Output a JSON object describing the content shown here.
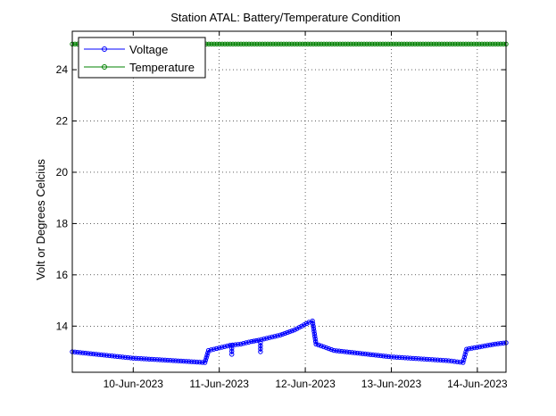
{
  "chart_data": {
    "type": "line",
    "title": "Station ATAL: Battery/Temperature Condition",
    "xlabel": "",
    "ylabel": "Volt or Degrees Celcius",
    "xlim": [
      "2023-06-09T07:00",
      "2023-06-14T08:00"
    ],
    "ylim": [
      12.2,
      25.5
    ],
    "x_ticks": [
      {
        "date": "2023-06-10",
        "label": "10-Jun-2023"
      },
      {
        "date": "2023-06-11",
        "label": "11-Jun-2023"
      },
      {
        "date": "2023-06-12",
        "label": "12-Jun-2023"
      },
      {
        "date": "2023-06-13",
        "label": "13-Jun-2023"
      },
      {
        "date": "2023-06-14",
        "label": "14-Jun-2023"
      }
    ],
    "y_ticks": [
      14,
      16,
      18,
      20,
      22,
      24
    ],
    "grid": true,
    "legend_position": "top-left",
    "series": [
      {
        "name": "Voltage",
        "color": "#0000ff",
        "marker": "circle",
        "points": [
          [
            "2023-06-09T07:00",
            13.0
          ],
          [
            "2023-06-10T00:00",
            12.75
          ],
          [
            "2023-06-10T20:00",
            12.58
          ],
          [
            "2023-06-10T21:00",
            13.05
          ],
          [
            "2023-06-11T03:00",
            13.25
          ],
          [
            "2023-06-11T06:00",
            13.3
          ],
          [
            "2023-06-11T09:00",
            13.4
          ],
          [
            "2023-06-11T11:00",
            13.45
          ],
          [
            "2023-06-11T17:00",
            13.65
          ],
          [
            "2023-06-11T21:00",
            13.85
          ],
          [
            "2023-06-12T01:00",
            14.15
          ],
          [
            "2023-06-12T02:00",
            14.2
          ],
          [
            "2023-06-12T03:00",
            13.3
          ],
          [
            "2023-06-12T08:00",
            13.05
          ],
          [
            "2023-06-13T00:00",
            12.8
          ],
          [
            "2023-06-13T16:00",
            12.65
          ],
          [
            "2023-06-13T20:00",
            12.58
          ],
          [
            "2023-06-13T21:00",
            13.1
          ],
          [
            "2023-06-14T05:00",
            13.3
          ],
          [
            "2023-06-14T08:00",
            13.35
          ]
        ],
        "dips": [
          [
            "2023-06-11T03:30",
            12.9
          ],
          [
            "2023-06-11T11:30",
            13.0
          ]
        ]
      },
      {
        "name": "Temperature",
        "color": "#008000",
        "marker": "circle",
        "points": [
          [
            "2023-06-09T07:00",
            25.0
          ],
          [
            "2023-06-14T08:00",
            25.0
          ]
        ]
      }
    ]
  }
}
